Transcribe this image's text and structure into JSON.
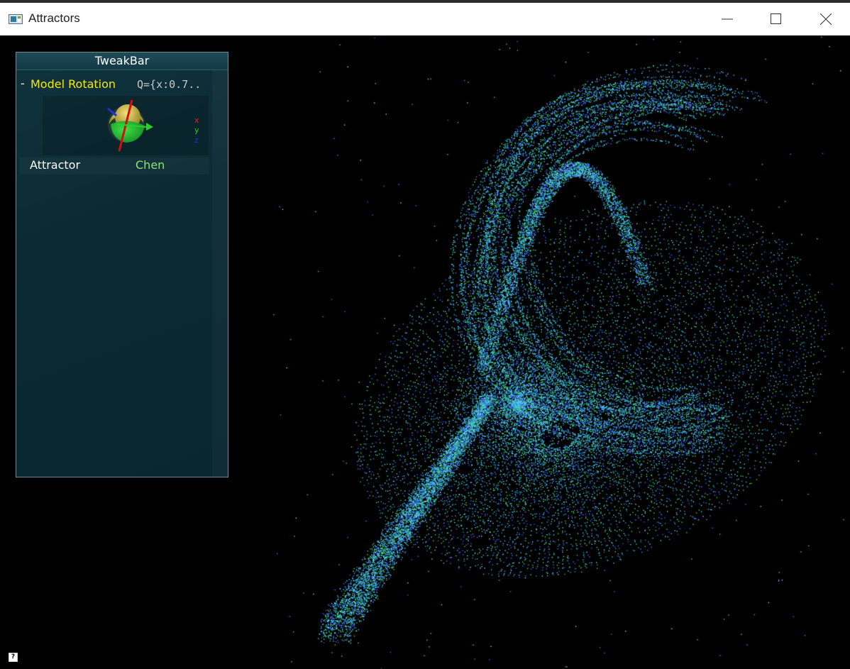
{
  "window": {
    "title": "Attractors"
  },
  "tweakbar": {
    "title": "TweakBar",
    "rotation": {
      "collapse_symbol": "-",
      "label": "Model Rotation",
      "value": "Q={x:0.7..",
      "axes": {
        "x": "x",
        "y": "y",
        "z": "z"
      }
    },
    "attractor": {
      "label": "Attractor",
      "value": "Chen"
    }
  },
  "help": {
    "symbol": "?"
  },
  "icons": {
    "app": "app-window-icon",
    "minimize": "minimize-icon",
    "maximize": "maximize-icon",
    "close": "close-icon",
    "help": "help-icon"
  },
  "colors": {
    "background": "#000000",
    "particles": [
      "#3ad0e0",
      "#2a90ff",
      "#40e060",
      "#4a5cff",
      "#6fe6ff"
    ],
    "label_yellow": "#f0e81c",
    "value_green": "#8ee07a"
  }
}
